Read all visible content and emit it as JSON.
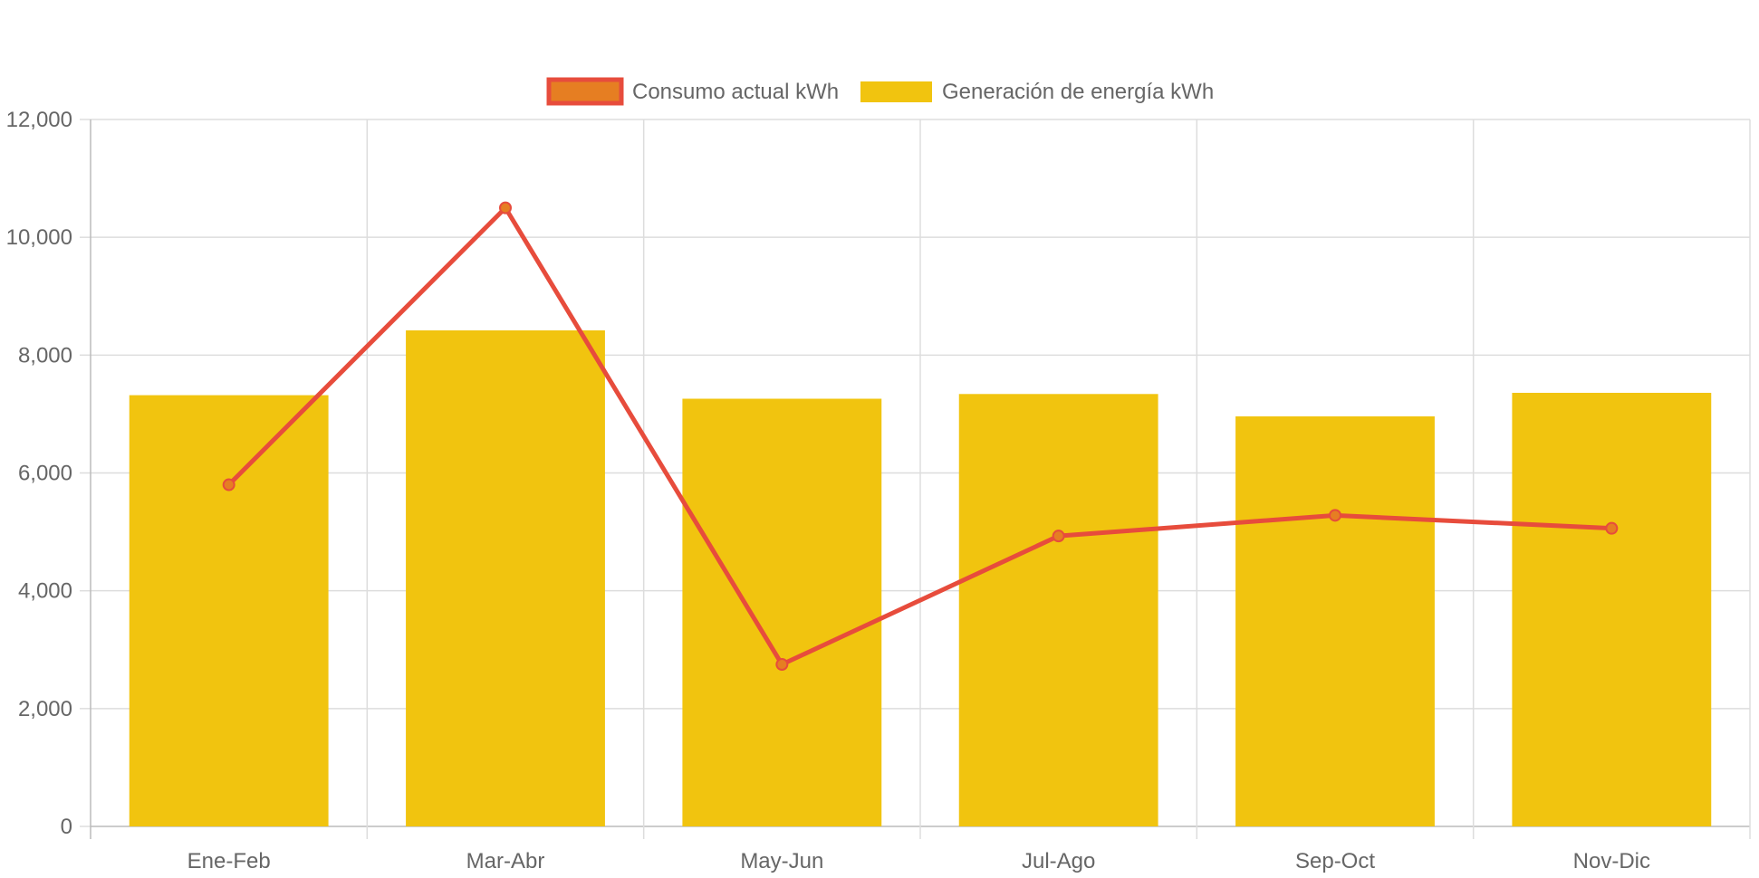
{
  "chart_data": {
    "type": "bar",
    "title": "",
    "xlabel": "",
    "ylabel": "",
    "categories": [
      "Ene-Feb",
      "Mar-Abr",
      "May-Jun",
      "Jul-Ago",
      "Sep-Oct",
      "Nov-Dic"
    ],
    "ylim": [
      0,
      12000
    ],
    "yticks": [
      "0",
      "2,000",
      "4,000",
      "6,000",
      "8,000",
      "10,000",
      "12,000"
    ],
    "ytick_values": [
      0,
      2000,
      4000,
      6000,
      8000,
      10000,
      12000
    ],
    "grid": true,
    "legend_position": "top-center",
    "series": [
      {
        "name": "Consumo actual kWh",
        "type": "line",
        "color": "#e74c3c",
        "point_color": "#e67e22",
        "values": [
          5800,
          10500,
          2750,
          4930,
          5280,
          5060
        ]
      },
      {
        "name": "Generación de energía kWh",
        "type": "bar",
        "color": "#f1c40f",
        "values": [
          7320,
          8420,
          7260,
          7340,
          6960,
          7360
        ]
      }
    ]
  }
}
